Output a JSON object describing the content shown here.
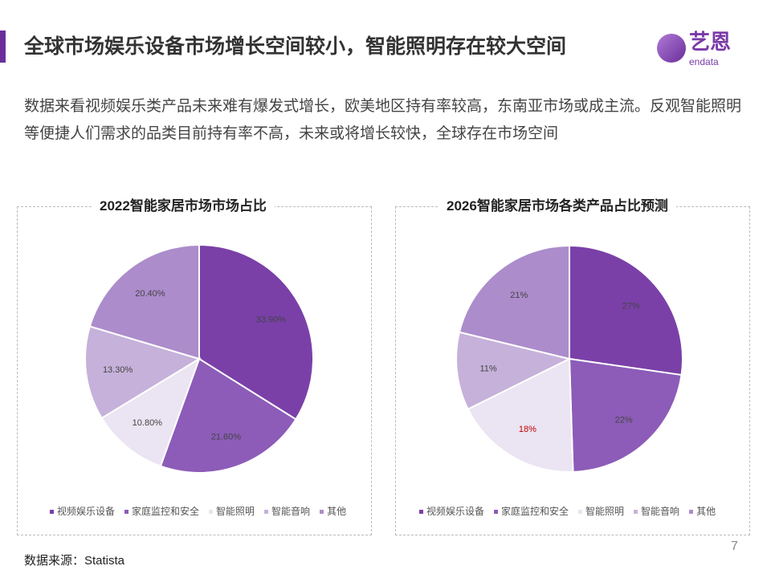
{
  "header": {
    "title": "全球市场娱乐设备市场增长空间较小，智能照明存在较大空间",
    "logo_cn": "艺恩",
    "logo_en": "endata"
  },
  "description": "数据来看视频娱乐类产品未来难有爆发式增长，欧美地区持有率较高，东南亚市场或成主流。反观智能照明等便捷人们需求的品类目前持有率不高，未来或将增长较快，全球存在市场空间",
  "colors": [
    "#7a40a8",
    "#8c5cb8",
    "#ebe4f2",
    "#c6b1da",
    "#ac8ccb"
  ],
  "chart_data": [
    {
      "type": "pie",
      "title": "2022智能家居市场市场占比",
      "categories": [
        "视频娱乐设备",
        "家庭监控和安全",
        "智能照明",
        "智能音响",
        "其他"
      ],
      "values": [
        33.9,
        21.6,
        10.8,
        13.3,
        20.4
      ],
      "labels": [
        "33.90%",
        "21.60%",
        "10.80%",
        "13.30%",
        "20.40%"
      ],
      "legend": "bottom"
    },
    {
      "type": "pie",
      "title": "2026智能家居市场各类产品占比预测",
      "categories": [
        "视频娱乐设备",
        "家庭监控和安全",
        "智能照明",
        "智能音响",
        "其他"
      ],
      "values": [
        27,
        22,
        18,
        11,
        21
      ],
      "labels": [
        "27%",
        "22%",
        "18%",
        "11%",
        "21%"
      ],
      "legend": "bottom"
    }
  ],
  "footer": {
    "source": "数据来源：Statista",
    "page": "7"
  }
}
